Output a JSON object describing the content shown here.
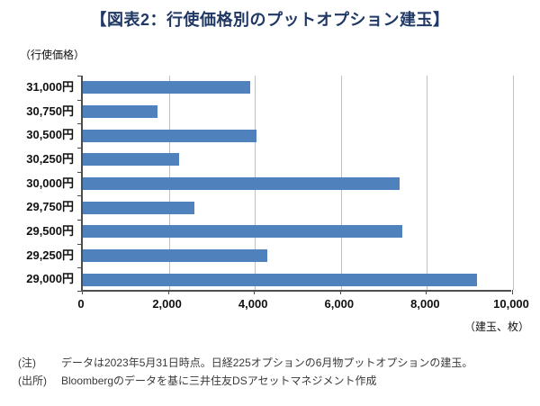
{
  "title": "【図表2：行使価格別のプットオプション建玉】",
  "y_axis_caption": "（行使価格）",
  "x_axis_caption": "（建玉、枚）",
  "notes": [
    {
      "label": "(注)",
      "text": "データは2023年5月31日時点。日経225オプションの6月物プットオプションの建玉。"
    },
    {
      "label": "(出所)",
      "text": "Bloombergのデータを基に三井住友DSアセットマネジメント作成"
    }
  ],
  "colors": {
    "bar": "#4f81bd",
    "title": "#1f3864",
    "gridline": "#bfbfbf",
    "axis": "#4d4d4d"
  },
  "chart_data": {
    "type": "bar",
    "orientation": "horizontal",
    "title": "【図表2：行使価格別のプットオプション建玉】",
    "xlabel": "（建玉、枚）",
    "ylabel": "（行使価格）",
    "categories": [
      "31,000円",
      "30,750円",
      "30,500円",
      "30,250円",
      "30,000円",
      "29,750円",
      "29,500円",
      "29,250円",
      "29,000円"
    ],
    "values": [
      3900,
      1750,
      4050,
      2250,
      7400,
      2600,
      7450,
      4300,
      9200
    ],
    "xlim": [
      0,
      10000
    ],
    "xticks": [
      0,
      2000,
      4000,
      6000,
      8000,
      10000
    ],
    "xtick_labels": [
      "0",
      "2,000",
      "4,000",
      "6,000",
      "8,000",
      "10,000"
    ],
    "grid": true,
    "legend": false
  }
}
